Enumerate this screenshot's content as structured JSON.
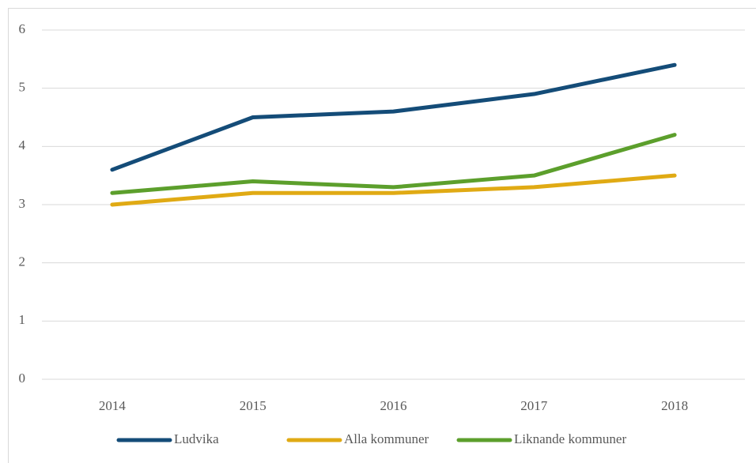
{
  "chart_data": {
    "type": "line",
    "categories": [
      "2014",
      "2015",
      "2016",
      "2017",
      "2018"
    ],
    "series": [
      {
        "name": "Ludvika",
        "color": "#144c78",
        "values": [
          3.6,
          4.5,
          4.6,
          4.9,
          5.4
        ]
      },
      {
        "name": "Alla kommuner",
        "color": "#e0aa14",
        "values": [
          3.0,
          3.2,
          3.2,
          3.3,
          3.5
        ]
      },
      {
        "name": "Liknande kommuner",
        "color": "#5c9f2c",
        "values": [
          3.2,
          3.4,
          3.3,
          3.5,
          4.2
        ]
      }
    ],
    "ylim": [
      0,
      6
    ],
    "yticks": [
      0,
      1,
      2,
      3,
      4,
      5,
      6
    ],
    "grid": true,
    "legend": "bottom"
  }
}
